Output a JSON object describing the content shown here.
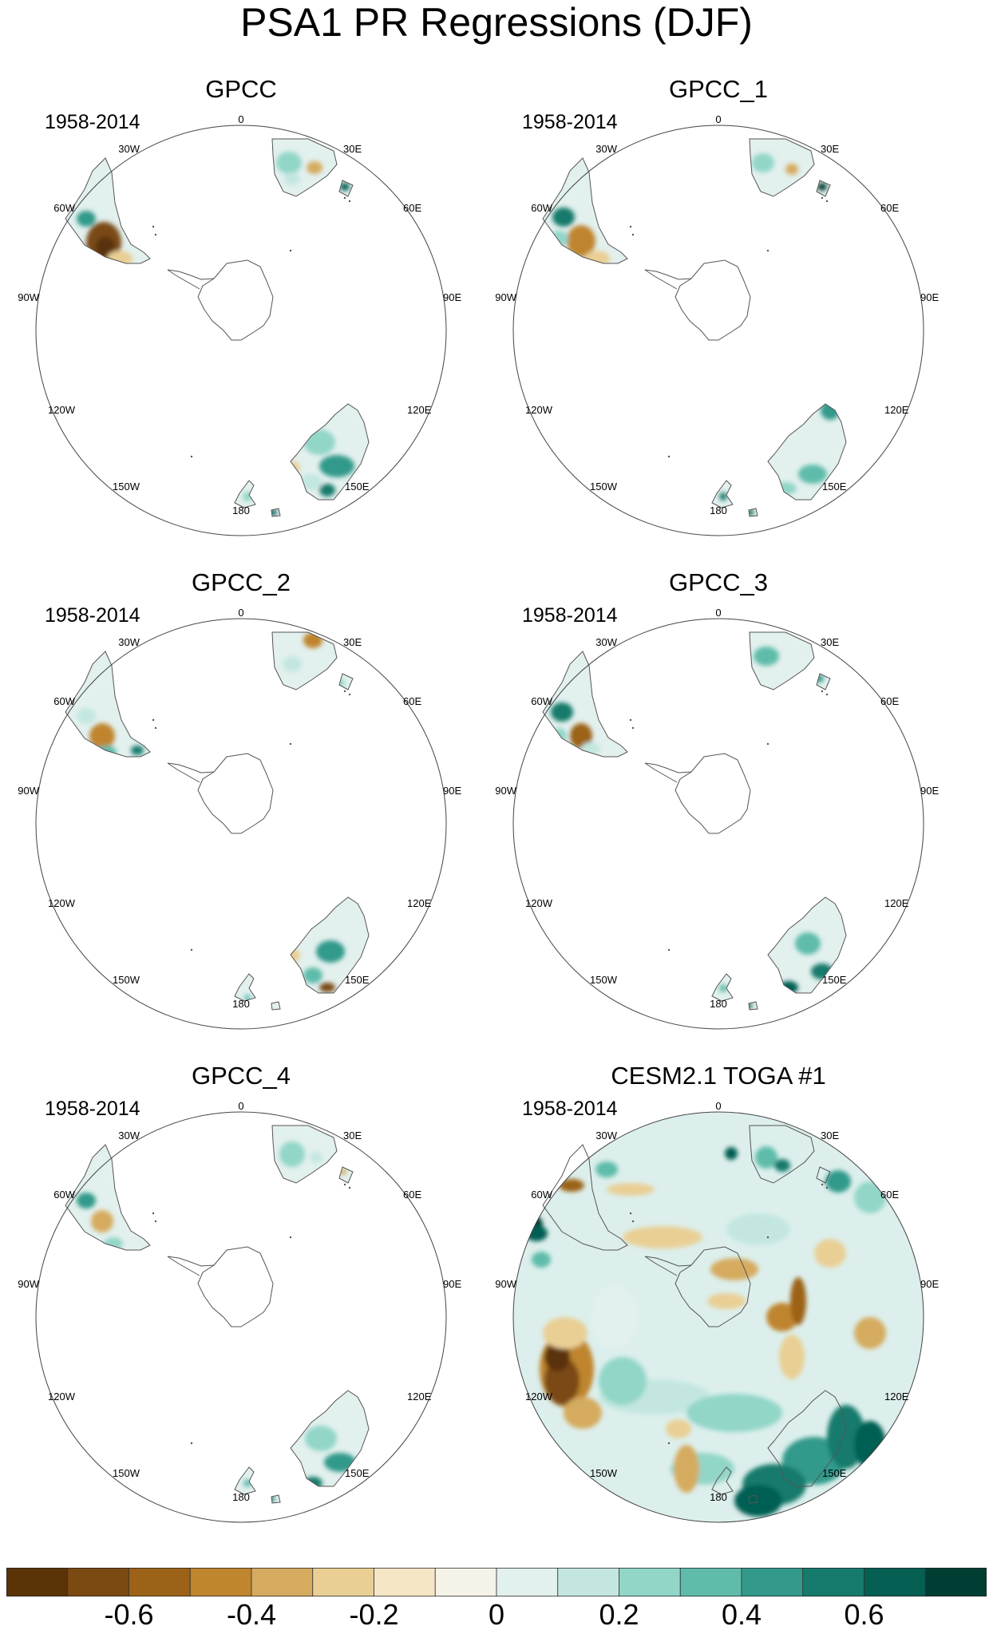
{
  "title": "PSA1 PR Regressions (DJF)",
  "panels": [
    {
      "title": "GPCC",
      "period": "1958-2014",
      "field": "observed",
      "variant": 0
    },
    {
      "title": "GPCC_1",
      "period": "1958-2014",
      "field": "observed",
      "variant": 1
    },
    {
      "title": "GPCC_2",
      "period": "1958-2014",
      "field": "observed",
      "variant": 2
    },
    {
      "title": "GPCC_3",
      "period": "1958-2014",
      "field": "observed",
      "variant": 3
    },
    {
      "title": "GPCC_4",
      "period": "1958-2014",
      "field": "observed",
      "variant": 4
    },
    {
      "title": "CESM2.1 TOGA #1",
      "period": "1958-2014",
      "field": "model",
      "variant": 5
    }
  ],
  "longitude_labels": [
    "0",
    "30E",
    "60E",
    "90E",
    "120E",
    "150E",
    "180",
    "150W",
    "120W",
    "90W",
    "60W",
    "30W"
  ],
  "colorbar": {
    "colors": [
      "#5a3307",
      "#7a4a12",
      "#9c6217",
      "#bf852f",
      "#d5ab5f",
      "#e9cf94",
      "#f5e7c6",
      "#f5f2e8",
      "#e2f0ee",
      "#c3e7e0",
      "#92d6c8",
      "#5fbcaa",
      "#339a8b",
      "#167a6c",
      "#065f53",
      "#003d33"
    ],
    "tick_values": [
      "-0.6",
      "-0.4",
      "-0.2",
      "0",
      "0.2",
      "0.4",
      "0.6"
    ],
    "levels": [
      -0.7,
      -0.6,
      -0.5,
      -0.4,
      -0.3,
      -0.2,
      -0.1,
      0,
      0.1,
      0.2,
      0.3,
      0.4,
      0.5,
      0.6,
      0.7
    ]
  }
}
